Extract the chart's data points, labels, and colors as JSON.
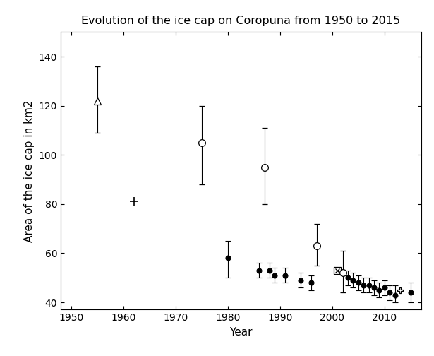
{
  "title": "Evolution of the ice cap on Coropuna from 1950 to 2015",
  "xlabel": "Year",
  "ylabel": "Area of the ice cap in km2",
  "xlim": [
    1948,
    2017
  ],
  "ylim": [
    37,
    150
  ],
  "yticks": [
    40,
    60,
    80,
    100,
    120,
    140
  ],
  "xticks": [
    1950,
    1960,
    1970,
    1980,
    1990,
    2000,
    2010
  ],
  "points": [
    {
      "year": 1955,
      "value": 122,
      "yerr_lo": 13,
      "yerr_hi": 14,
      "marker": "triangle_open"
    },
    {
      "year": 1962,
      "value": 81,
      "yerr_lo": 0,
      "yerr_hi": 0,
      "marker": "plus"
    },
    {
      "year": 1975,
      "value": 105,
      "yerr_lo": 17,
      "yerr_hi": 15,
      "marker": "circle_open"
    },
    {
      "year": 1980,
      "value": 58,
      "yerr_lo": 8,
      "yerr_hi": 7,
      "marker": "circle_filled"
    },
    {
      "year": 1987,
      "value": 95,
      "yerr_lo": 15,
      "yerr_hi": 16,
      "marker": "circle_open"
    },
    {
      "year": 1986,
      "value": 53,
      "yerr_lo": 3,
      "yerr_hi": 3,
      "marker": "circle_filled"
    },
    {
      "year": 1988,
      "value": 53,
      "yerr_lo": 3,
      "yerr_hi": 3,
      "marker": "circle_filled"
    },
    {
      "year": 1989,
      "value": 51,
      "yerr_lo": 3,
      "yerr_hi": 3,
      "marker": "circle_filled"
    },
    {
      "year": 1991,
      "value": 51,
      "yerr_lo": 3,
      "yerr_hi": 3,
      "marker": "circle_filled"
    },
    {
      "year": 1994,
      "value": 49,
      "yerr_lo": 3,
      "yerr_hi": 3,
      "marker": "circle_filled"
    },
    {
      "year": 1996,
      "value": 48,
      "yerr_lo": 3,
      "yerr_hi": 3,
      "marker": "circle_filled"
    },
    {
      "year": 1997,
      "value": 63,
      "yerr_lo": 8,
      "yerr_hi": 9,
      "marker": "circle_open"
    },
    {
      "year": 2001,
      "value": 53,
      "yerr_lo": 0,
      "yerr_hi": 0,
      "marker": "square_x"
    },
    {
      "year": 2002,
      "value": 52,
      "yerr_lo": 8,
      "yerr_hi": 9,
      "marker": "circle_open"
    },
    {
      "year": 2003,
      "value": 50,
      "yerr_lo": 3,
      "yerr_hi": 3,
      "marker": "circle_filled"
    },
    {
      "year": 2004,
      "value": 49,
      "yerr_lo": 3,
      "yerr_hi": 3,
      "marker": "circle_filled"
    },
    {
      "year": 2005,
      "value": 48,
      "yerr_lo": 3,
      "yerr_hi": 3,
      "marker": "circle_filled"
    },
    {
      "year": 2006,
      "value": 47,
      "yerr_lo": 3,
      "yerr_hi": 3,
      "marker": "circle_filled"
    },
    {
      "year": 2007,
      "value": 47,
      "yerr_lo": 3,
      "yerr_hi": 3,
      "marker": "circle_filled"
    },
    {
      "year": 2008,
      "value": 46,
      "yerr_lo": 3,
      "yerr_hi": 3,
      "marker": "circle_filled"
    },
    {
      "year": 2009,
      "value": 45,
      "yerr_lo": 3,
      "yerr_hi": 3,
      "marker": "circle_filled"
    },
    {
      "year": 2010,
      "value": 46,
      "yerr_lo": 3,
      "yerr_hi": 3,
      "marker": "circle_filled"
    },
    {
      "year": 2011,
      "value": 44,
      "yerr_lo": 3,
      "yerr_hi": 3,
      "marker": "circle_filled"
    },
    {
      "year": 2012,
      "value": 43,
      "yerr_lo": 3,
      "yerr_hi": 4,
      "marker": "circle_filled"
    },
    {
      "year": 2013,
      "value": 45,
      "yerr_lo": 0,
      "yerr_hi": 0,
      "marker": "star_open"
    },
    {
      "year": 2015,
      "value": 44,
      "yerr_lo": 4,
      "yerr_hi": 4,
      "marker": "circle_filled"
    }
  ],
  "marker_size": 6,
  "capsize": 3,
  "elinewidth": 0.8,
  "linewidth": 0.8,
  "background_color": "#ffffff",
  "panel_color": "#ffffff",
  "title_fontsize": 11.5,
  "axis_fontsize": 11,
  "tick_fontsize": 10
}
